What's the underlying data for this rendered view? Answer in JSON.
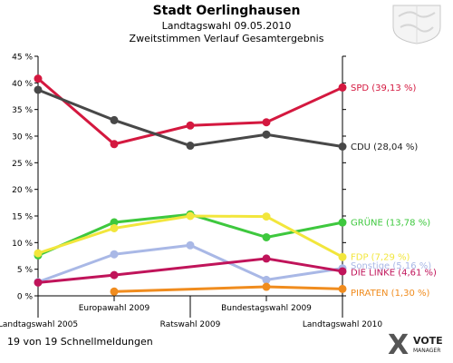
{
  "header": {
    "title": "Stadt Oerlinghausen",
    "subtitle1": "Landtagswahl 09.05.2010",
    "subtitle2": "Zweitstimmen Verlauf Gesamtergebnis"
  },
  "footer": "19 von 19 Schnellmeldungen",
  "logo": {
    "line1": "VOTE",
    "line2": "MANAGER",
    "mark": "X"
  },
  "chart_data": {
    "type": "line",
    "categories": [
      "Landtagswahl 2005",
      "Europawahl 2009",
      "Ratswahl 2009",
      "Bundestagswahl 2009",
      "Landtagswahl 2010"
    ],
    "ylim": [
      0,
      45
    ],
    "yticks": [
      "0 %",
      "5 %",
      "10 %",
      "15 %",
      "20 %",
      "25 %",
      "30 %",
      "35 %",
      "40 %",
      "45 %"
    ],
    "grid": false,
    "legend": "right end labels",
    "series": [
      {
        "name": "SPD (39,13 %)",
        "color": "#d4183f",
        "values": [
          40.8,
          28.5,
          32.0,
          32.6,
          39.13
        ]
      },
      {
        "name": "CDU (28,04 %)",
        "color": "#484848",
        "values": [
          38.7,
          33.0,
          28.2,
          30.3,
          28.04
        ]
      },
      {
        "name": "GRÜNE (13,78 %)",
        "color": "#3ec83e",
        "values": [
          7.6,
          13.8,
          15.3,
          11.0,
          13.78
        ]
      },
      {
        "name": "FDP (7,29 %)",
        "color": "#f2e63c",
        "values": [
          8.0,
          12.7,
          15.0,
          14.9,
          7.29
        ]
      },
      {
        "name": "Sonstige (5,16 %)",
        "color": "#a9b8e6",
        "values": [
          2.6,
          7.8,
          9.5,
          3.0,
          5.16
        ]
      },
      {
        "name": "DIE LINKE (4,61 %)",
        "color": "#c0145a",
        "values": [
          2.5,
          3.9,
          null,
          7.0,
          4.61
        ]
      },
      {
        "name": "PIRATEN (1,30 %)",
        "color": "#f08c1e",
        "values": [
          null,
          0.8,
          null,
          1.7,
          1.3
        ]
      }
    ]
  }
}
